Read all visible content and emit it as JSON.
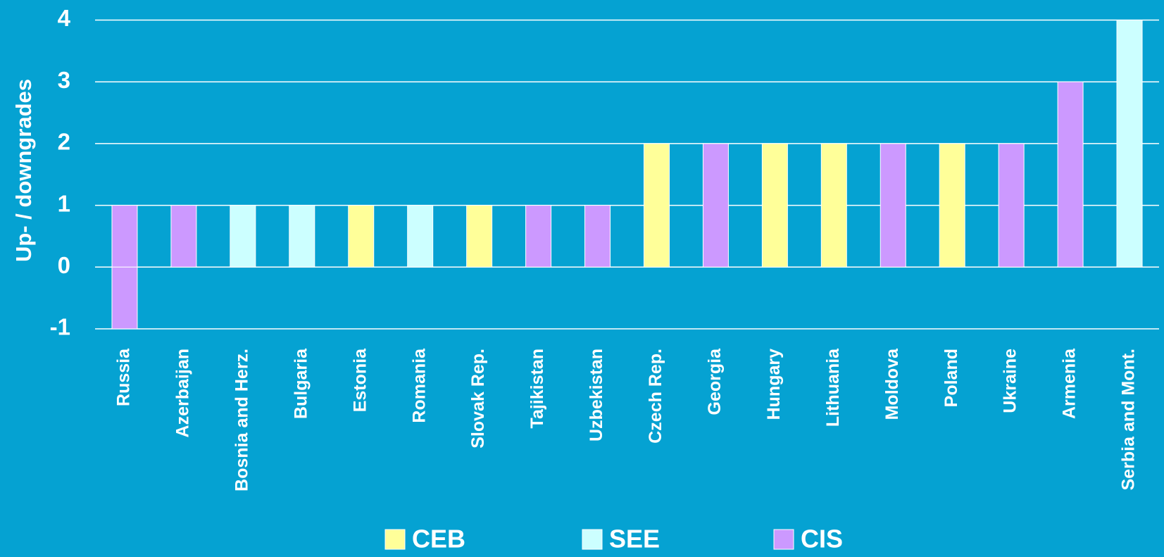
{
  "chart_data": {
    "type": "stacked_bar",
    "y_label": "Up- / downgrades",
    "categories": [
      "Russia",
      "Azerbaijan",
      "Bosnia and Herz.",
      "Bulgaria",
      "Estonia",
      "Romania",
      "Slovak Rep.",
      "Tajikistan",
      "Uzbekistan",
      "Czech Rep.",
      "Georgia",
      "Hungary",
      "Lithuania",
      "Moldova",
      "Poland",
      "Ukraine",
      "Armenia",
      "Serbia and Mont."
    ],
    "series": [
      {
        "name": "CEB",
        "color": "#ffff99",
        "values": [
          null,
          null,
          null,
          null,
          1,
          null,
          1,
          null,
          null,
          2,
          null,
          2,
          2,
          null,
          2,
          null,
          null,
          null
        ]
      },
      {
        "name": "SEE",
        "color": "#ccffff",
        "values": [
          null,
          null,
          1,
          1,
          null,
          1,
          null,
          null,
          null,
          null,
          null,
          null,
          null,
          null,
          null,
          null,
          null,
          4
        ]
      },
      {
        "name": "CIS",
        "color": "#cc99ff",
        "values": [
          1,
          1,
          null,
          null,
          null,
          null,
          null,
          1,
          1,
          null,
          2,
          null,
          null,
          2,
          null,
          2,
          3,
          null
        ]
      },
      {
        "color": "#cc99ff",
        "values": [
          -1,
          null,
          null,
          null,
          null,
          null,
          null,
          null,
          null,
          null,
          null,
          null,
          null,
          null,
          null,
          null,
          null,
          null
        ]
      }
    ],
    "ylim": [
      -1,
      4
    ],
    "yticks": [
      -1,
      0,
      1,
      2,
      3,
      4
    ],
    "grid": true,
    "legend": "bottom"
  }
}
